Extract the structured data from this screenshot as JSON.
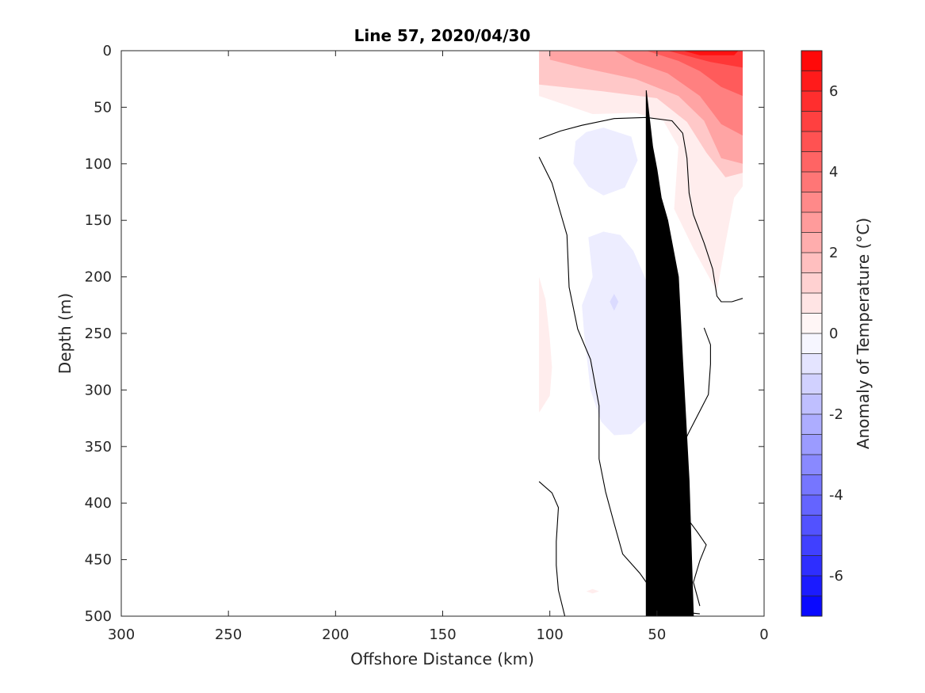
{
  "chart_data": {
    "type": "heatmap",
    "title": "Line 57, 2020/04/30",
    "xlabel": "Offshore Distance (km)",
    "ylabel": "Depth (m)",
    "xlim": [
      300,
      0
    ],
    "ylim": [
      500,
      0
    ],
    "x_reversed": true,
    "y_reversed": true,
    "xticks": [
      300,
      250,
      200,
      150,
      100,
      50,
      0
    ],
    "yticks": [
      0,
      50,
      100,
      150,
      200,
      250,
      300,
      350,
      400,
      450,
      500
    ],
    "colorbar": {
      "label": "Anomaly of Temperature (°C)",
      "range": [
        -7,
        7
      ],
      "ticks": [
        -6,
        -4,
        -2,
        0,
        2,
        4,
        6
      ],
      "levels": [
        -7,
        -6.5,
        -6,
        -5.5,
        -5,
        -4.5,
        -4,
        -3.5,
        -3,
        -2.5,
        -2,
        -1.5,
        -1,
        -0.5,
        0,
        0.5,
        1,
        1.5,
        2,
        2.5,
        3,
        3.5,
        4,
        4.5,
        5,
        5.5,
        6,
        6.5,
        7
      ],
      "cold_color": "#0000ff",
      "neutral_color": "#ffffff",
      "warm_color": "#ff0000"
    },
    "data_extent_km": [
      0,
      105
    ],
    "zero_contour_lines": [
      [
        [
          105,
          78
        ],
        [
          95,
          71
        ],
        [
          85,
          66
        ],
        [
          70,
          60
        ],
        [
          55,
          59
        ],
        [
          43,
          62
        ],
        [
          38,
          73
        ],
        [
          36,
          95
        ],
        [
          35,
          126
        ],
        [
          33,
          145
        ],
        [
          28,
          170
        ],
        [
          24,
          193
        ],
        [
          22,
          217
        ],
        [
          20,
          222
        ],
        [
          15,
          222
        ],
        [
          10,
          219
        ]
      ],
      [
        [
          105,
          94
        ],
        [
          99,
          117
        ],
        [
          96,
          137
        ],
        [
          92,
          163
        ],
        [
          91,
          209
        ],
        [
          87,
          246
        ],
        [
          81,
          273
        ],
        [
          77,
          314
        ],
        [
          77,
          361
        ],
        [
          74,
          390
        ],
        [
          70,
          418
        ],
        [
          66,
          445
        ],
        [
          58,
          462
        ],
        [
          52,
          478
        ],
        [
          45,
          491
        ],
        [
          35,
          497
        ],
        [
          30,
          498
        ]
      ],
      [
        [
          105,
          381
        ],
        [
          99,
          391
        ],
        [
          96,
          404
        ],
        [
          97,
          434
        ],
        [
          97,
          455
        ],
        [
          96,
          477
        ],
        [
          93,
          500
        ]
      ],
      [
        [
          28,
          245
        ],
        [
          25,
          260
        ],
        [
          25,
          277
        ],
        [
          26,
          304
        ],
        [
          35,
          337
        ],
        [
          40,
          357
        ],
        [
          44,
          381
        ],
        [
          40,
          403
        ],
        [
          31,
          426
        ],
        [
          27,
          437
        ],
        [
          30,
          451
        ],
        [
          33,
          470
        ],
        [
          30,
          491
        ]
      ]
    ],
    "bathymetry": [
      [
        33,
        500
      ],
      [
        35,
        380
      ],
      [
        38,
        275
      ],
      [
        40,
        200
      ],
      [
        45,
        150
      ],
      [
        48,
        130
      ],
      [
        50,
        105
      ],
      [
        52,
        85
      ],
      [
        55,
        35
      ],
      [
        55,
        500
      ]
    ],
    "anomaly_regions": [
      {
        "value": 0.5,
        "points": [
          [
            105,
            0
          ],
          [
            10,
            0
          ],
          [
            10,
            120
          ],
          [
            14,
            130
          ],
          [
            18,
            170
          ],
          [
            22,
            213
          ],
          [
            33,
            175
          ],
          [
            42,
            140
          ],
          [
            40,
            85
          ],
          [
            47,
            62
          ],
          [
            60,
            55
          ],
          [
            80,
            56
          ],
          [
            105,
            40
          ]
        ]
      },
      {
        "value": 1.5,
        "points": [
          [
            105,
            0
          ],
          [
            10,
            0
          ],
          [
            10,
            108
          ],
          [
            18,
            112
          ],
          [
            27,
            90
          ],
          [
            36,
            63
          ],
          [
            50,
            42
          ],
          [
            75,
            36
          ],
          [
            105,
            30
          ]
        ]
      },
      {
        "value": 2.5,
        "points": [
          [
            100,
            0
          ],
          [
            10,
            0
          ],
          [
            10,
            100
          ],
          [
            20,
            95
          ],
          [
            28,
            62
          ],
          [
            40,
            40
          ],
          [
            60,
            25
          ],
          [
            85,
            15
          ],
          [
            100,
            8
          ]
        ]
      },
      {
        "value": 3.5,
        "points": [
          [
            70,
            0
          ],
          [
            10,
            0
          ],
          [
            10,
            75
          ],
          [
            20,
            65
          ],
          [
            30,
            40
          ],
          [
            45,
            20
          ],
          [
            60,
            10
          ]
        ]
      },
      {
        "value": 4.5,
        "points": [
          [
            55,
            0
          ],
          [
            10,
            0
          ],
          [
            10,
            40
          ],
          [
            20,
            32
          ],
          [
            30,
            18
          ],
          [
            40,
            9
          ]
        ]
      },
      {
        "value": 5.5,
        "points": [
          [
            45,
            0
          ],
          [
            10,
            0
          ],
          [
            10,
            15
          ],
          [
            25,
            10
          ],
          [
            35,
            5
          ]
        ]
      },
      {
        "value": 6.5,
        "points": [
          [
            38,
            0
          ],
          [
            12,
            0
          ],
          [
            14,
            4
          ],
          [
            30,
            4
          ]
        ]
      },
      {
        "value": 0.5,
        "points": [
          [
            105,
            200
          ],
          [
            102,
            220
          ],
          [
            100,
            255
          ],
          [
            99,
            280
          ],
          [
            100,
            305
          ],
          [
            105,
            320
          ]
        ]
      },
      {
        "value": -0.5,
        "points": [
          [
            88,
            80
          ],
          [
            83,
            72
          ],
          [
            75,
            68
          ],
          [
            62,
            76
          ],
          [
            59,
            97
          ],
          [
            65,
            121
          ],
          [
            75,
            128
          ],
          [
            82,
            120
          ],
          [
            89,
            100
          ]
        ]
      },
      {
        "value": -0.5,
        "points": [
          [
            82,
            165
          ],
          [
            75,
            160
          ],
          [
            67,
            163
          ],
          [
            61,
            177
          ],
          [
            53,
            212
          ],
          [
            49,
            260
          ],
          [
            49,
            305
          ],
          [
            55,
            327
          ],
          [
            62,
            339
          ],
          [
            70,
            340
          ],
          [
            76,
            328
          ],
          [
            81,
            300
          ],
          [
            84,
            250
          ],
          [
            85,
            225
          ],
          [
            80,
            200
          ]
        ]
      },
      {
        "value": -1,
        "points": [
          [
            70,
            215
          ],
          [
            68,
            222
          ],
          [
            70,
            230
          ],
          [
            72,
            222
          ]
        ]
      },
      {
        "value": 0.5,
        "points": [
          [
            80,
            476
          ],
          [
            77,
            478
          ],
          [
            80,
            480
          ],
          [
            83,
            478
          ]
        ]
      }
    ]
  }
}
